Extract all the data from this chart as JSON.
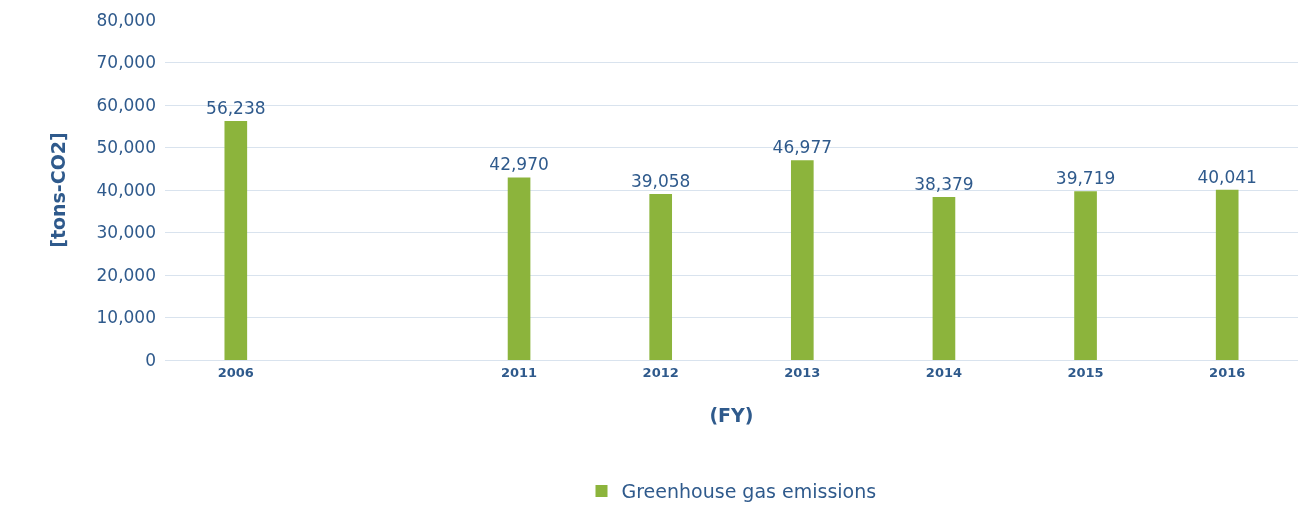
{
  "chart_data": {
    "type": "bar",
    "xlabel": "(FY)",
    "ylabel": "[tons-CO2]",
    "categories": [
      "2006",
      null,
      "2011",
      "2012",
      "2013",
      "2014",
      "2015",
      "2016"
    ],
    "series": [
      {
        "name": "Greenhouse gas emissions",
        "color": "#8cb43c",
        "values": [
          56238,
          null,
          42970,
          39058,
          46977,
          38379,
          39719,
          40041
        ],
        "value_labels": [
          "56,238",
          null,
          "42,970",
          "39,058",
          "46,977",
          "38,379",
          "39,719",
          "40,041"
        ]
      }
    ],
    "ylim": [
      0,
      80000
    ],
    "yticks": [
      {
        "value": 0,
        "label": "0"
      },
      {
        "value": 10000,
        "label": "10,000"
      },
      {
        "value": 20000,
        "label": "20,000"
      },
      {
        "value": 30000,
        "label": "30,000"
      },
      {
        "value": 40000,
        "label": "40,000"
      },
      {
        "value": 50000,
        "label": "50,000"
      },
      {
        "value": 60000,
        "label": "60,000"
      },
      {
        "value": 70000,
        "label": "70,000"
      },
      {
        "value": 80000,
        "label": "80,000"
      }
    ],
    "grid": "y",
    "legend": "bottom"
  }
}
